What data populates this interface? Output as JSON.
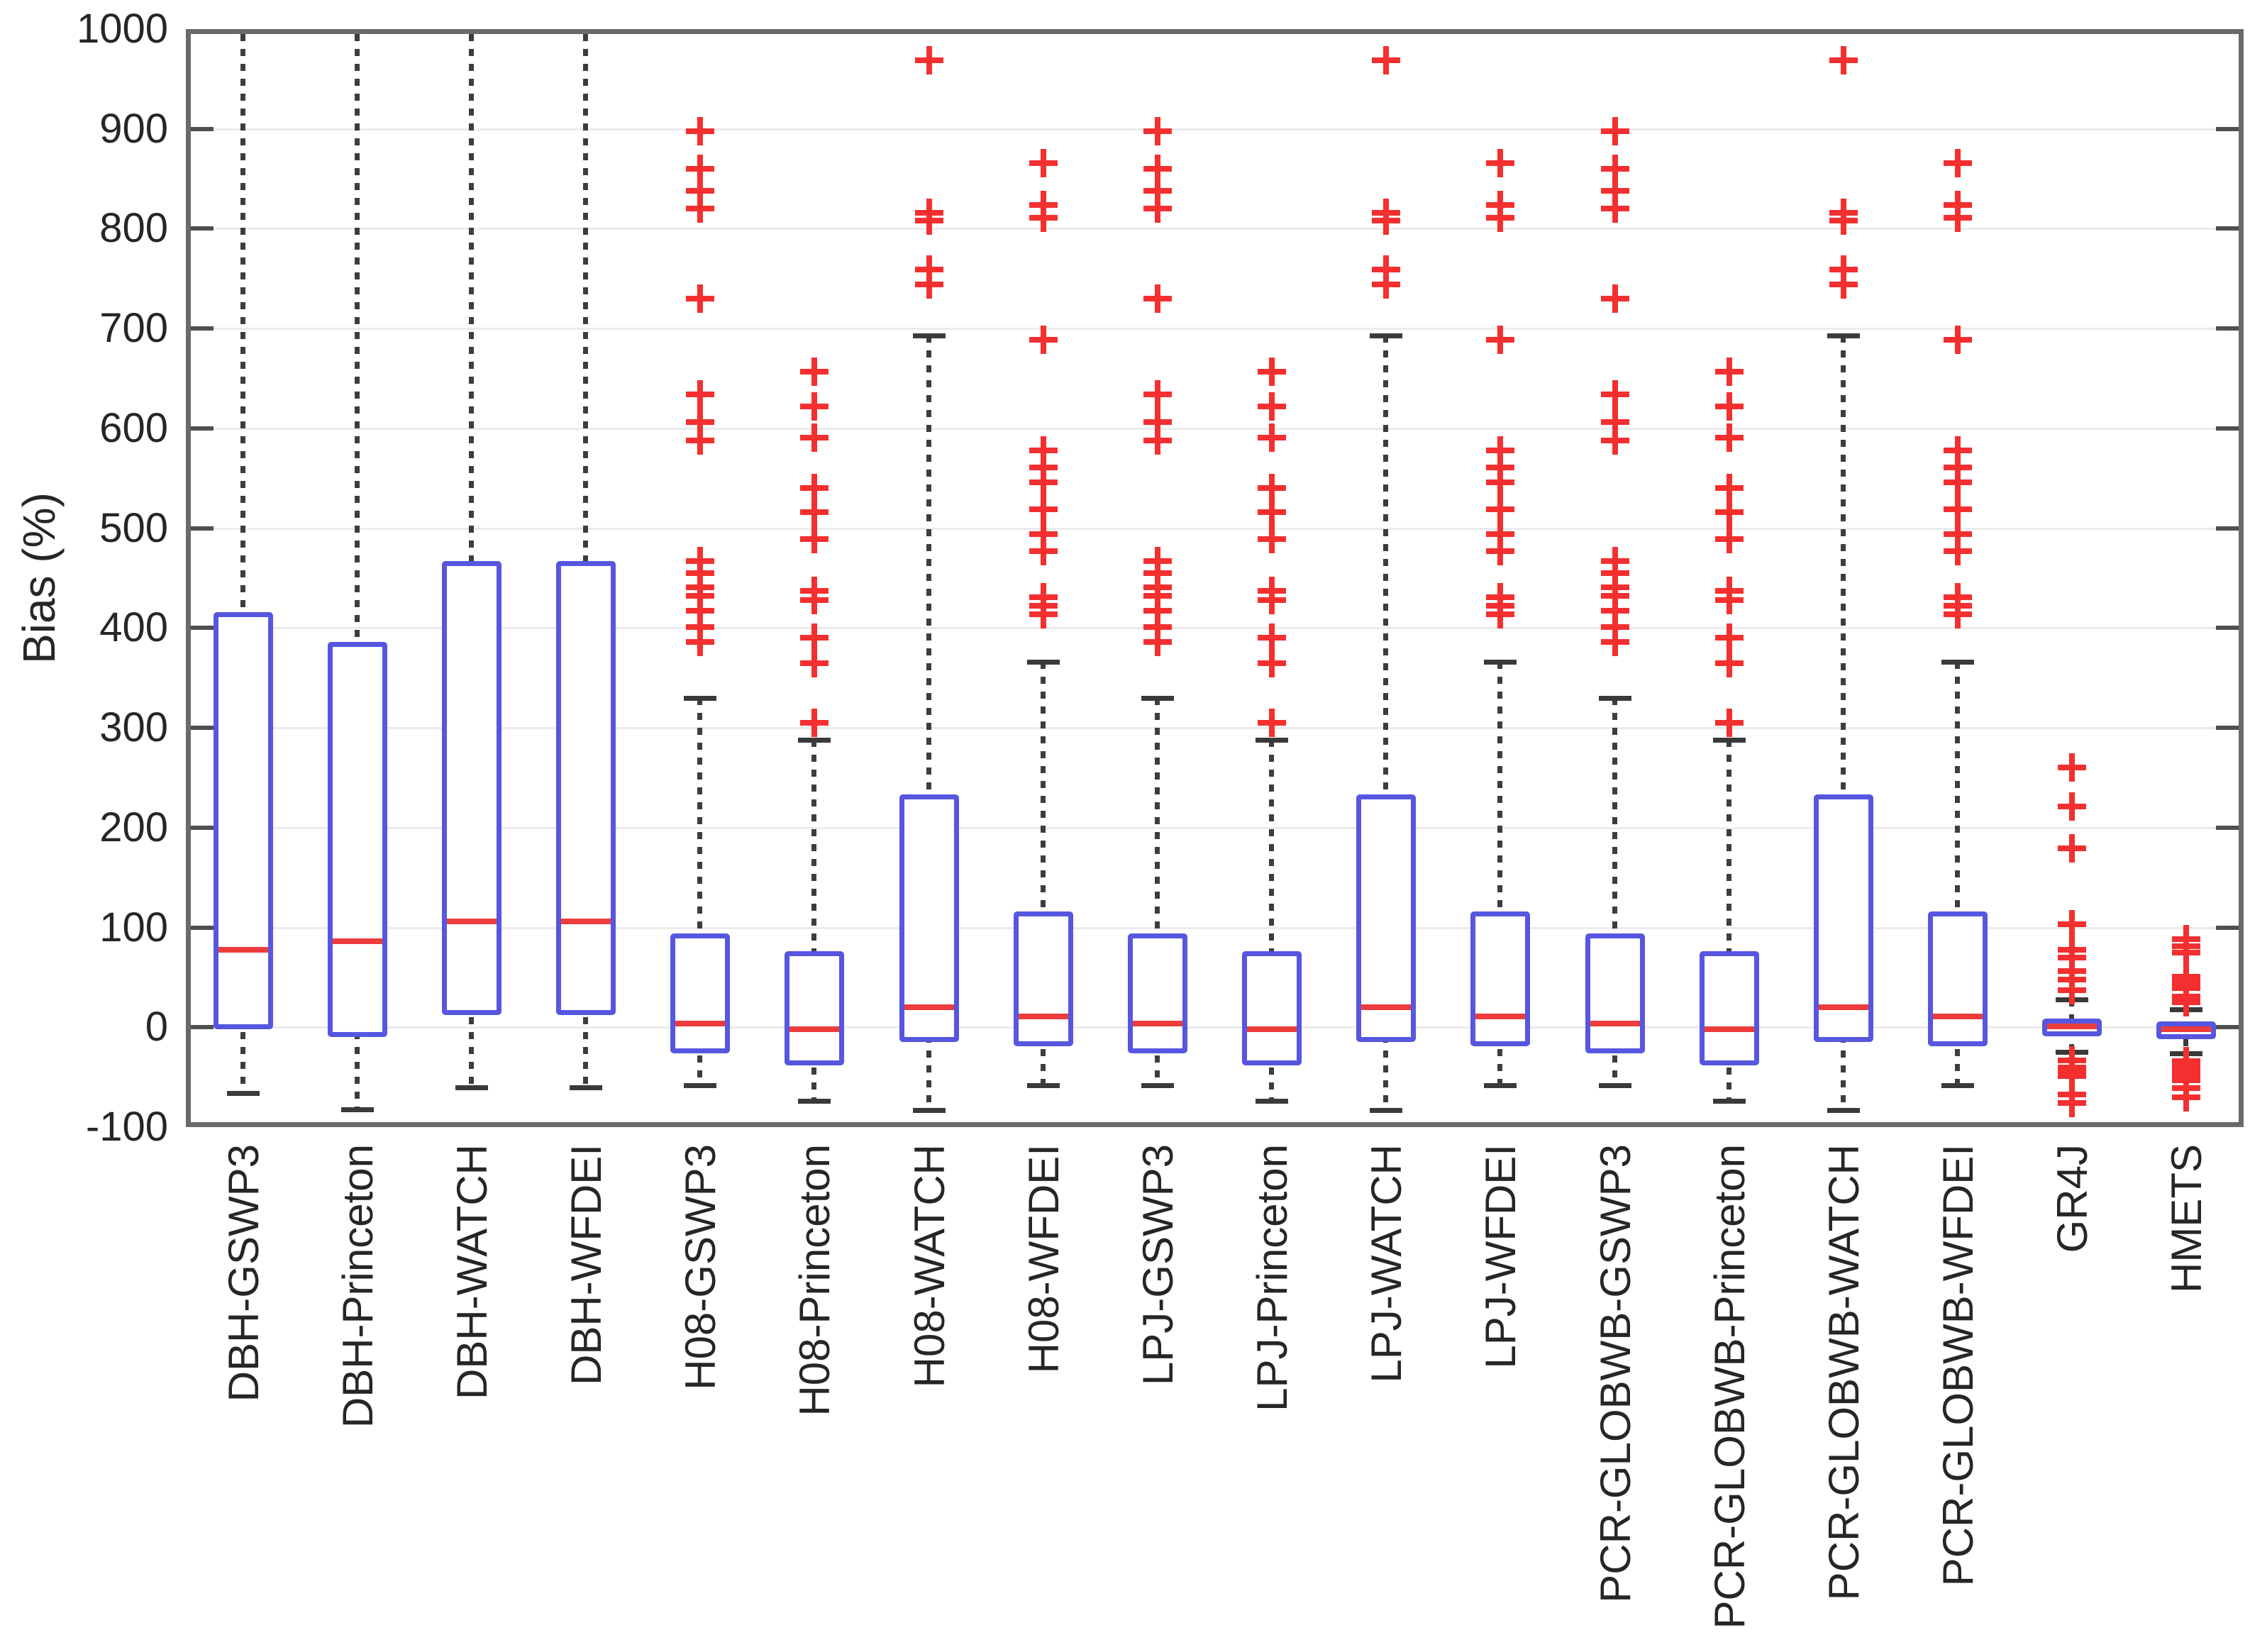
{
  "chart_data": {
    "type": "boxplot",
    "title": "",
    "ylabel": "Bias (%)",
    "xlabel": "",
    "ylim": [
      -100,
      1000
    ],
    "yticks": [
      -100,
      0,
      100,
      200,
      300,
      400,
      500,
      600,
      700,
      800,
      900,
      1000
    ],
    "grid": "horizontal-light",
    "legend": "none",
    "marker": "plus",
    "categories": [
      "DBH-GSWP3",
      "DBH-Princeton",
      "DBH-WATCH",
      "DBH-WFDEI",
      "H08-GSWP3",
      "H08-Princeton",
      "H08-WATCH",
      "H08-WFDEI",
      "LPJ-GSWP3",
      "LPJ-Princeton",
      "LPJ-WATCH",
      "LPJ-WFDEI",
      "PCR-GLOBWB-GSWP3",
      "PCR-GLOBWB-Princeton",
      "PCR-GLOBWB-WATCH",
      "PCR-GLOBWB-WFDEI",
      "GR4J",
      "HMETS"
    ],
    "boxes": [
      {
        "label": "DBH-GSWP3",
        "q1": -2,
        "median": 78,
        "q3": 416,
        "whisker_low": -66,
        "whisker_high": 1000,
        "cap_high": false,
        "outliers_high": [],
        "outliers_low": []
      },
      {
        "label": "DBH-Princeton",
        "q1": -10,
        "median": 86,
        "q3": 386,
        "whisker_low": -82,
        "whisker_high": 1000,
        "cap_high": false,
        "outliers_high": [],
        "outliers_low": []
      },
      {
        "label": "DBH-WATCH",
        "q1": 12,
        "median": 106,
        "q3": 467,
        "whisker_low": -60,
        "whisker_high": 1000,
        "cap_high": false,
        "outliers_high": [],
        "outliers_low": []
      },
      {
        "label": "DBH-WFDEI",
        "q1": 12,
        "median": 106,
        "q3": 467,
        "whisker_low": -60,
        "whisker_high": 1000,
        "cap_high": false,
        "outliers_high": [],
        "outliers_low": []
      },
      {
        "label": "H08-GSWP3",
        "q1": -26,
        "median": 4,
        "q3": 94,
        "whisker_low": -58,
        "whisker_high": 330,
        "cap_high": true,
        "outliers_high": [
          898,
          860,
          838,
          820,
          730,
          634,
          606,
          588,
          467,
          455,
          441,
          432,
          417,
          401,
          386
        ],
        "outliers_low": []
      },
      {
        "label": "H08-Princeton",
        "q1": -38,
        "median": -2,
        "q3": 76,
        "whisker_low": -74,
        "whisker_high": 288,
        "cap_high": true,
        "outliers_high": [
          657,
          622,
          591,
          540,
          516,
          489,
          437,
          428,
          390,
          365,
          305
        ],
        "outliers_low": []
      },
      {
        "label": "H08-WATCH",
        "q1": -15,
        "median": 20,
        "q3": 233,
        "whisker_low": -83,
        "whisker_high": 693,
        "cap_high": true,
        "outliers_high": [
          969,
          816,
          808,
          759,
          744
        ],
        "outliers_low": []
      },
      {
        "label": "H08-WFDEI",
        "q1": -19,
        "median": 11,
        "q3": 116,
        "whisker_low": -58,
        "whisker_high": 366,
        "cap_high": true,
        "outliers_high": [
          866,
          824,
          811,
          689,
          578,
          561,
          546,
          519,
          494,
          477,
          431,
          422,
          414
        ],
        "outliers_low": []
      },
      {
        "label": "LPJ-GSWP3",
        "q1": -26,
        "median": 4,
        "q3": 94,
        "whisker_low": -58,
        "whisker_high": 330,
        "cap_high": true,
        "outliers_high": [
          898,
          860,
          838,
          820,
          730,
          634,
          606,
          588,
          467,
          455,
          441,
          432,
          417,
          401,
          386
        ],
        "outliers_low": []
      },
      {
        "label": "LPJ-Princeton",
        "q1": -38,
        "median": -2,
        "q3": 76,
        "whisker_low": -74,
        "whisker_high": 288,
        "cap_high": true,
        "outliers_high": [
          657,
          622,
          591,
          540,
          516,
          489,
          437,
          428,
          390,
          365,
          305
        ],
        "outliers_low": []
      },
      {
        "label": "LPJ-WATCH",
        "q1": -15,
        "median": 20,
        "q3": 233,
        "whisker_low": -83,
        "whisker_high": 693,
        "cap_high": true,
        "outliers_high": [
          969,
          816,
          808,
          759,
          744
        ],
        "outliers_low": []
      },
      {
        "label": "LPJ-WFDEI",
        "q1": -19,
        "median": 11,
        "q3": 116,
        "whisker_low": -58,
        "whisker_high": 366,
        "cap_high": true,
        "outliers_high": [
          866,
          824,
          811,
          689,
          578,
          561,
          546,
          519,
          494,
          477,
          431,
          422,
          414
        ],
        "outliers_low": []
      },
      {
        "label": "PCR-GLOBWB-GSWP3",
        "q1": -26,
        "median": 4,
        "q3": 94,
        "whisker_low": -58,
        "whisker_high": 330,
        "cap_high": true,
        "outliers_high": [
          898,
          860,
          838,
          820,
          730,
          634,
          606,
          588,
          467,
          455,
          441,
          432,
          417,
          401,
          386
        ],
        "outliers_low": []
      },
      {
        "label": "PCR-GLOBWB-Princeton",
        "q1": -38,
        "median": -2,
        "q3": 76,
        "whisker_low": -74,
        "whisker_high": 288,
        "cap_high": true,
        "outliers_high": [
          657,
          622,
          591,
          540,
          516,
          489,
          437,
          428,
          390,
          365,
          305
        ],
        "outliers_low": []
      },
      {
        "label": "PCR-GLOBWB-WATCH",
        "q1": -15,
        "median": 20,
        "q3": 233,
        "whisker_low": -83,
        "whisker_high": 693,
        "cap_high": true,
        "outliers_high": [
          969,
          816,
          808,
          759,
          744
        ],
        "outliers_low": []
      },
      {
        "label": "PCR-GLOBWB-WFDEI",
        "q1": -19,
        "median": 11,
        "q3": 116,
        "whisker_low": -58,
        "whisker_high": 366,
        "cap_high": true,
        "outliers_high": [
          866,
          824,
          811,
          689,
          578,
          561,
          546,
          519,
          494,
          477,
          431,
          422,
          414
        ],
        "outliers_low": []
      },
      {
        "label": "GR4J",
        "q1": -9,
        "median": 1,
        "q3": 9,
        "whisker_low": -25,
        "whisker_high": 28,
        "cap_high": true,
        "outliers_high": [
          260,
          221,
          179,
          103,
          78,
          70,
          56,
          48,
          37
        ],
        "outliers_low": [
          -33,
          -40,
          -45,
          -49,
          -67,
          -76
        ]
      },
      {
        "label": "HMETS",
        "q1": -12,
        "median": -2,
        "q3": 6,
        "whisker_low": -26,
        "whisker_high": 18,
        "cap_high": true,
        "outliers_high": [
          88,
          81,
          75,
          51,
          45,
          39,
          31,
          25
        ],
        "outliers_low": [
          -34,
          -39,
          -44,
          -48,
          -53,
          -61,
          -70
        ]
      }
    ],
    "colors": {
      "box_edge": "#5656e0",
      "median": "#ee3c3c",
      "outlier": "#f42f2f",
      "whisker": "#3d3d3d",
      "whisker_cap": "#3a3a3a",
      "grid_line": "#ebebeb",
      "axis_frame": "#6a6a6a",
      "tick": "#4f4f4f",
      "text": "#262626",
      "background": "#ffffff"
    }
  }
}
